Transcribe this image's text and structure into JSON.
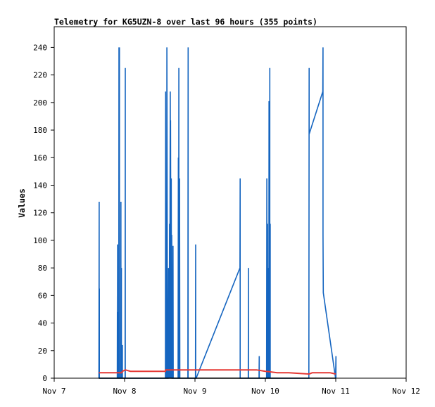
{
  "chart_data": {
    "type": "line",
    "title": "Telemetry for KG5UZN-8 over last 96 hours (355 points)",
    "xlabel": "",
    "ylabel": "Values",
    "x_ticks": [
      "Nov 7",
      "Nov 8",
      "Nov 9",
      "Nov 10",
      "Nov 11",
      "Nov 12"
    ],
    "xlim": [
      "Nov 7",
      "Nov 12"
    ],
    "ylim": [
      0,
      255
    ],
    "y_ticks": [
      0,
      20,
      40,
      60,
      80,
      100,
      120,
      140,
      160,
      180,
      200,
      220,
      240
    ],
    "grid": false,
    "series": [
      {
        "color": "#1565c0",
        "x": [
          "Nov 7 15:15",
          "Nov 7 15:20",
          "Nov 7 15:20",
          "Nov 7 15:25",
          "Nov 7 15:25",
          "Nov 7 21:30",
          "Nov 7 21:35",
          "Nov 7 21:35",
          "Nov 7 21:45",
          "Nov 7 21:50",
          "Nov 7 21:50",
          "Nov 7 22:00",
          "Nov 7 22:05",
          "Nov 7 22:05",
          "Nov 7 22:10",
          "Nov 7 22:15",
          "Nov 7 22:15",
          "Nov 7 22:40",
          "Nov 7 22:45",
          "Nov 7 22:45",
          "Nov 7 22:50",
          "Nov 7 22:55",
          "Nov 7 22:55",
          "Nov 7 23:10",
          "Nov 7 23:15",
          "Nov 7 23:15",
          "Nov 8 00:10",
          "Nov 8 00:15",
          "Nov 8 00:15",
          "Nov 8 13:55",
          "Nov 8 14:00",
          "Nov 8 14:00",
          "Nov 8 14:05",
          "Nov 8 14:10",
          "Nov 8 14:15",
          "Nov 8 14:20",
          "Nov 8 14:25",
          "Nov 8 14:35",
          "Nov 8 14:40",
          "Nov 8 14:40",
          "Nov 8 14:50",
          "Nov 8 14:55",
          "Nov 8 15:00",
          "Nov 8 15:05",
          "Nov 8 15:10",
          "Nov 8 15:15",
          "Nov 8 15:20",
          "Nov 8 15:25",
          "Nov 8 15:30",
          "Nov 8 15:35",
          "Nov 8 15:40",
          "Nov 8 15:40",
          "Nov 8 15:50",
          "Nov 8 15:55",
          "Nov 8 16:00",
          "Nov 8 16:05",
          "Nov 8 16:10",
          "Nov 8 16:15",
          "Nov 8 16:20",
          "Nov 8 16:25",
          "Nov 8 16:30",
          "Nov 8 16:35",
          "Nov 8 16:40",
          "Nov 8 16:45",
          "Nov 8 16:50",
          "Nov 8 16:55",
          "Nov 8 17:00",
          "Nov 8 17:05",
          "Nov 8 17:10",
          "Nov 8 18:15",
          "Nov 8 18:20",
          "Nov 8 18:20",
          "Nov 8 18:25",
          "Nov 8 18:30",
          "Nov 8 18:30",
          "Nov 8 18:40",
          "Nov 8 18:45",
          "Nov 8 18:50",
          "Nov 8 18:50",
          "Nov 8 21:35",
          "Nov 8 21:40",
          "Nov 8 21:40",
          "Nov 9 00:10",
          "Nov 9 00:15",
          "Nov 9 00:15",
          "Nov 9 00:20",
          "Nov 9 00:25",
          "Nov 9 00:25",
          "Nov 9 15:20",
          "Nov 9 15:25",
          "Nov 9 15:25",
          "Nov 9 18:10",
          "Nov 9 18:15",
          "Nov 9 18:15",
          "Nov 9 21:50",
          "Nov 9 21:55",
          "Nov 9 21:55",
          "Nov 9 22:00",
          "Nov 9 22:05",
          "Nov 9 22:05",
          "Nov 10 00:25",
          "Nov 10 00:30",
          "Nov 10 00:30",
          "Nov 10 00:40",
          "Nov 10 00:45",
          "Nov 10 00:45",
          "Nov 10 00:55",
          "Nov 10 01:00",
          "Nov 10 01:00",
          "Nov 10 01:10",
          "Nov 10 01:15",
          "Nov 10 01:15",
          "Nov 10 01:25",
          "Nov 10 01:30",
          "Nov 10 01:30",
          "Nov 10 01:35",
          "Nov 10 01:40",
          "Nov 10 01:40",
          "Nov 10 14:50",
          "Nov 10 14:55",
          "Nov 10 14:55",
          "Nov 10 19:35",
          "Nov 10 19:40",
          "Nov 10 19:40",
          "Nov 10 19:45",
          "Nov 10 23:55",
          "Nov 11 00:00",
          "Nov 11 00:05",
          "Nov 11 00:05"
        ],
        "values": [
          0,
          128,
          0,
          65,
          0,
          0,
          97,
          0,
          0,
          48,
          0,
          0,
          240,
          0,
          0,
          240,
          0,
          0,
          128,
          0,
          0,
          80,
          0,
          0,
          24,
          0,
          0,
          225,
          0,
          0,
          208,
          0,
          0,
          80,
          0,
          0,
          240,
          45,
          0,
          0,
          0,
          28,
          80,
          24,
          0,
          16,
          112,
          0,
          145,
          208,
          0,
          187,
          0,
          145,
          0,
          104,
          0,
          0,
          0,
          16,
          96,
          0,
          0,
          0,
          0,
          0,
          0,
          0,
          0,
          0,
          160,
          0,
          0,
          225,
          0,
          0,
          145,
          0,
          0,
          0,
          240,
          0,
          0,
          97,
          0,
          0,
          0,
          0,
          80,
          145,
          0,
          0,
          80,
          0,
          0,
          16,
          0,
          0,
          0,
          0,
          0,
          145,
          0,
          0,
          112,
          0,
          0,
          80,
          0,
          0,
          201,
          0,
          0,
          225,
          0,
          0,
          112,
          0,
          0,
          225,
          177,
          208,
          240,
          104,
          62,
          0,
          8,
          16,
          0
        ]
      },
      {
        "color": "#e53935",
        "x": [
          "Nov 7 15:15",
          "Nov 7 23:00",
          "Nov 7 23:15",
          "Nov 8 00:15",
          "Nov 8 02:00",
          "Nov 8 13:55",
          "Nov 8 14:00",
          "Nov 9 12:00",
          "Nov 9 15:25",
          "Nov 9 21:00",
          "Nov 10 00:00",
          "Nov 10 04:00",
          "Nov 10 08:00",
          "Nov 10 14:55",
          "Nov 10 16:00",
          "Nov 10 19:40",
          "Nov 10 22:00",
          "Nov 11 00:00"
        ],
        "values": [
          4,
          4,
          5,
          6,
          5,
          5,
          6,
          6,
          6,
          6,
          5,
          4,
          4,
          3,
          4,
          4,
          4,
          3
        ]
      },
      {
        "color": "#000000",
        "x": [
          "Nov 7 15:15",
          "Nov 11 00:05"
        ],
        "values": [
          0,
          0
        ]
      }
    ]
  }
}
